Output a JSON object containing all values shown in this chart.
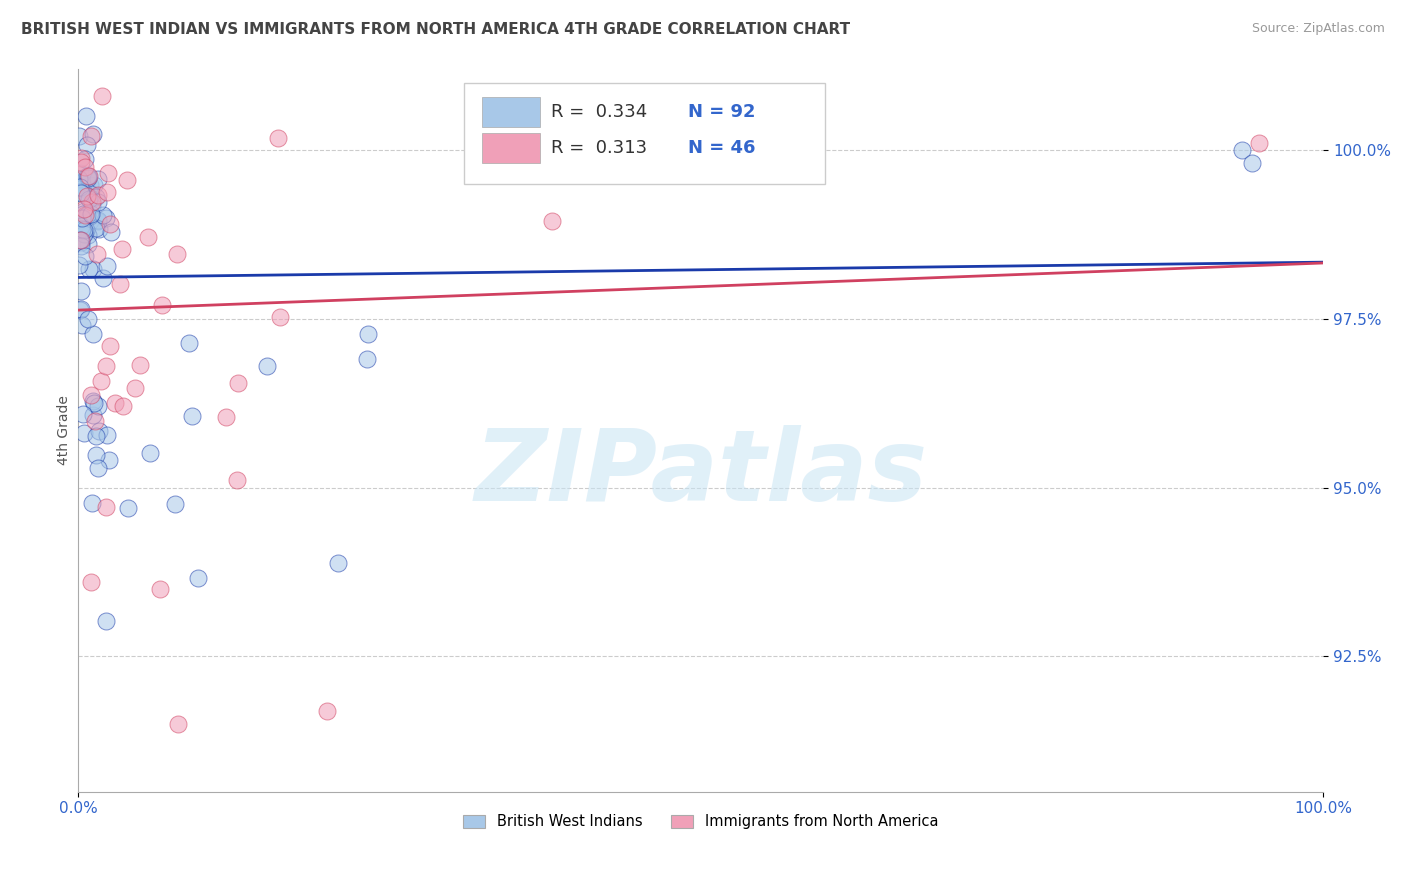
{
  "title": "BRITISH WEST INDIAN VS IMMIGRANTS FROM NORTH AMERICA 4TH GRADE CORRELATION CHART",
  "source_text": "Source: ZipAtlas.com",
  "ylabel": "4th Grade",
  "watermark": "ZIPatlas",
  "xlim": [
    0.0,
    1.0
  ],
  "ylim": [
    90.5,
    101.2
  ],
  "yticks": [
    92.5,
    95.0,
    97.5,
    100.0
  ],
  "ytick_labels": [
    "92.5%",
    "95.0%",
    "97.5%",
    "100.0%"
  ],
  "xtick_labels": [
    "0.0%",
    "100.0%"
  ],
  "legend_r_blue": "0.334",
  "legend_n_blue": "92",
  "legend_r_pink": "0.313",
  "legend_n_pink": "46",
  "blue_color": "#a8c8e8",
  "pink_color": "#f0a0b8",
  "trend_blue": "#1a3aaa",
  "trend_pink": "#d04060",
  "background_color": "#ffffff",
  "grid_color": "#cccccc",
  "title_fontsize": 11,
  "axis_label_fontsize": 10,
  "tick_fontsize": 11,
  "watermark_fontsize": 72,
  "watermark_color": "#c8e4f4",
  "watermark_alpha": 0.55,
  "source_fontsize": 9
}
